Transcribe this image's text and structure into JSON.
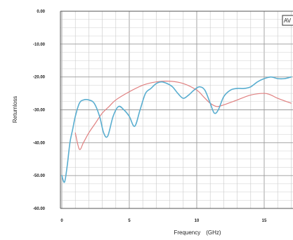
{
  "chart_data": {
    "type": "line",
    "title": "",
    "xlabel": "Frequency　(GHz)",
    "ylabel": "Returnloss",
    "xlim": [
      0,
      17
    ],
    "ylim": [
      -60,
      0
    ],
    "x_ticks": [
      0,
      5,
      10,
      15
    ],
    "x_tick_labels": [
      "0",
      "5",
      "10",
      "15"
    ],
    "y_ticks": [
      0,
      -10,
      -20,
      -30,
      -40,
      -50,
      -60
    ],
    "y_tick_labels": [
      "0.00",
      "-10.00",
      "-20.00",
      "-30.00",
      "-40.00",
      "-50.00",
      "-60.00"
    ],
    "grid": true,
    "legend_box_label": "AV",
    "series": [
      {
        "color": "#5aaed0",
        "x": [
          0.0,
          0.2,
          0.4,
          0.6,
          0.8,
          1.0,
          1.3,
          1.6,
          2.0,
          2.4,
          2.8,
          3.1,
          3.4,
          3.8,
          4.2,
          4.6,
          5.0,
          5.4,
          5.8,
          6.2,
          6.6,
          7.0,
          7.4,
          7.8,
          8.2,
          8.6,
          9.0,
          9.4,
          9.8,
          10.2,
          10.6,
          11.0,
          11.3,
          11.6,
          12.0,
          12.5,
          13.0,
          13.5,
          14.0,
          14.5,
          15.0,
          15.5,
          16.0,
          16.5,
          17.0
        ],
        "y": [
          -50,
          -52,
          -47,
          -40,
          -36,
          -32,
          -28,
          -27,
          -27,
          -28,
          -32,
          -37,
          -38,
          -32,
          -29,
          -30,
          -32,
          -35,
          -30,
          -25,
          -23.5,
          -22,
          -21.5,
          -22,
          -23,
          -25,
          -26.5,
          -25.5,
          -24,
          -23,
          -24,
          -28,
          -31,
          -30,
          -26,
          -24,
          -23.5,
          -23.5,
          -23,
          -21.5,
          -20.5,
          -20,
          -20.5,
          -20.5,
          -20
        ]
      },
      {
        "color": "#e08080",
        "x": [
          1.0,
          1.3,
          1.6,
          2.0,
          2.5,
          3.0,
          3.5,
          4.0,
          5.0,
          6.0,
          7.0,
          8.0,
          9.0,
          10.0,
          10.5,
          11.0,
          11.5,
          12.0,
          13.0,
          14.0,
          15.0,
          15.5,
          16.0,
          17.0
        ],
        "y": [
          -37,
          -42,
          -40,
          -37,
          -34,
          -31,
          -29,
          -27,
          -24.5,
          -22.5,
          -21.5,
          -21.3,
          -22,
          -24,
          -26,
          -28,
          -29,
          -28.5,
          -27,
          -25.5,
          -25,
          -25.5,
          -26.5,
          -28
        ]
      }
    ]
  }
}
